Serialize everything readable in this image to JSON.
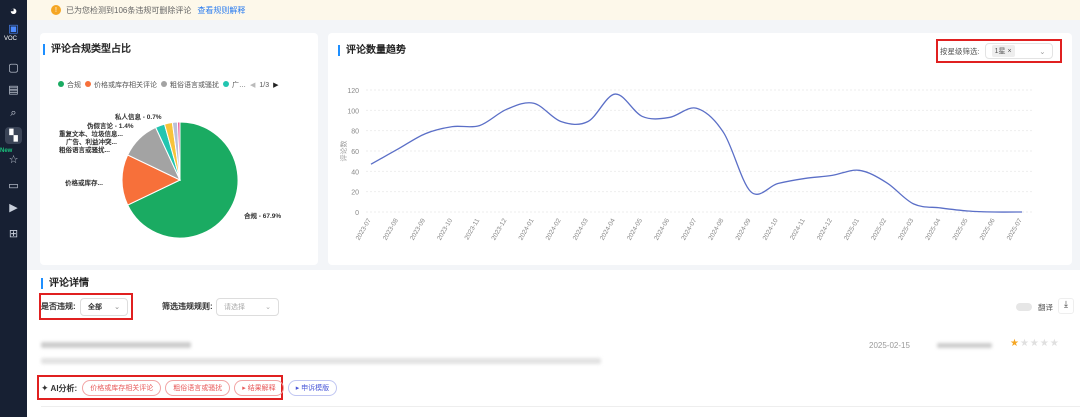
{
  "sidebar": {
    "brand": "VOC",
    "new_badge": "New",
    "items": [
      "chat-icon",
      "doc-icon",
      "search-icon",
      "store-icon",
      "star-icon",
      "message-icon",
      "video-icon",
      "grid-icon"
    ]
  },
  "banner": {
    "text": "已为您检测到106条违规可删除评论",
    "link": "查看规则解释"
  },
  "pie_card": {
    "title": "评论合规类型占比",
    "legend": [
      {
        "label": "合规",
        "color": "#1aab62"
      },
      {
        "label": "价格或库存相关评论",
        "color": "#f7703a"
      },
      {
        "label": "粗俗语言或骚扰",
        "color": "#a3a3a3"
      },
      {
        "label": "广…",
        "color": "#22c5b0"
      }
    ],
    "legend_page": "1/3"
  },
  "trend_card": {
    "title": "评论数量趋势",
    "filter_label": "按星级筛选:",
    "filter_tag": "1星"
  },
  "chart_data": [
    {
      "type": "pie",
      "title": "评论合规类型占比",
      "slices": [
        {
          "label": "合规",
          "display": "合规 - 67.9%",
          "value": 67.9,
          "color": "#1aab62"
        },
        {
          "label": "价格或库存相关评论",
          "display": "价格或库存...",
          "value": 14.2,
          "color": "#f7703a"
        },
        {
          "label": "粗俗语言或骚扰",
          "display": "粗俗语言或骚扰...",
          "value": 11.0,
          "color": "#a3a3a3"
        },
        {
          "label": "广告、利益冲突",
          "display": "广告、利益冲突...",
          "value": 2.6,
          "color": "#22c5b0"
        },
        {
          "label": "重复文本、垃圾信息",
          "display": "重复文本、垃圾信息...",
          "value": 2.2,
          "color": "#f7c33a"
        },
        {
          "label": "伪假言论",
          "display": "伪假言论 - 1.4%",
          "value": 1.4,
          "color": "#b8c0d8"
        },
        {
          "label": "私人信息",
          "display": "私人信息 - 0.7%",
          "value": 0.7,
          "color": "#e85d9a"
        }
      ]
    },
    {
      "type": "line",
      "title": "评论数量趋势",
      "ylabel": "评论数",
      "ylim": [
        0,
        120
      ],
      "yticks": [
        "0",
        "20",
        "40",
        "60",
        "80",
        "100",
        "120"
      ],
      "x": [
        "2023-07",
        "2023-08",
        "2023-09",
        "2023-10",
        "2023-11",
        "2023-12",
        "2024-01",
        "2024-02",
        "2024-03",
        "2024-04",
        "2024-05",
        "2024-06",
        "2024-07",
        "2024-08",
        "2024-09",
        "2024-10",
        "2024-11",
        "2024-12",
        "2025-01",
        "2025-02",
        "2025-03",
        "2025-04",
        "2025-05",
        "2025-06",
        "2025-07"
      ],
      "values": [
        47,
        62,
        77,
        84,
        85,
        101,
        107,
        89,
        89,
        116,
        94,
        93,
        102,
        78,
        20,
        28,
        33,
        36,
        41,
        29,
        8,
        4,
        1,
        0,
        0
      ],
      "color": "#5b6fc7"
    }
  ],
  "details": {
    "title": "评论详情",
    "violation_label": "是否违规:",
    "violation_value": "全部",
    "rule_label": "筛选违规规则:",
    "rule_placeholder": "请选择",
    "translate": "翻译",
    "review": {
      "date": "2025-02-15",
      "rating": 1,
      "ai_label": "AI分析:",
      "tags": [
        "价格或库存相关评论",
        "粗俗语言或骚扰"
      ],
      "explain": "结果解释",
      "appeal": "申诉模版"
    }
  }
}
